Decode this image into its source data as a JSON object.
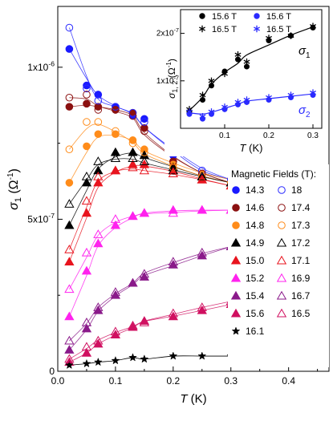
{
  "chart_data": [
    {
      "type": "scatter",
      "xlabel_var": "T",
      "xlabel_unit": "(K)",
      "ylabel_var": "σ",
      "ylabel_sub": "1",
      "ylabel_unit": "(Ω",
      "ylabel_unit_sup": "-1",
      "ylabel_unit_close": ")",
      "xlim": [
        0,
        0.47
      ],
      "ylim": [
        0,
        1.2e-06
      ],
      "x_ticks": [
        0.0,
        0.1,
        0.2,
        0.3,
        0.4
      ],
      "x_tick_labels": [
        "0.0",
        "0.1",
        "0.2",
        "0.3",
        "0.4"
      ],
      "y_ticks": [
        0,
        5e-07,
        1e-06
      ],
      "y_tick_labels": [
        "0",
        "5x10",
        "1x10"
      ],
      "y_tick_label_exps": [
        "",
        "-7",
        "-6"
      ],
      "legend_title": "Magnetic Fields (T):",
      "legend_placement": "right",
      "x": [
        0.02,
        0.05,
        0.07,
        0.1,
        0.13,
        0.15,
        0.2,
        0.25,
        0.3
      ],
      "series": [
        {
          "name": "14.3",
          "marker": "circle",
          "filled": true,
          "color": "#1a1aff",
          "values": [
            1.06e-06,
            9.4e-07,
            9.1e-07,
            8.7e-07,
            8.4e-07,
            8.3e-07,
            7.1e-07,
            6.5e-07,
            6.3e-07
          ]
        },
        {
          "name": "14.6",
          "marker": "circle",
          "filled": true,
          "color": "#8b1010",
          "values": [
            8.7e-07,
            8.8e-07,
            8.7e-07,
            8.6e-07,
            8.5e-07,
            8e-07,
            6.9e-07,
            6.5e-07,
            6.2e-07
          ]
        },
        {
          "name": "14.8",
          "marker": "circle",
          "filled": true,
          "color": "#ff8c1a",
          "values": [
            6.2e-07,
            7.4e-07,
            7.8e-07,
            7.8e-07,
            7.6e-07,
            7.3e-07,
            6.8e-07,
            6.5e-07,
            6.3e-07
          ]
        },
        {
          "name": "14.9",
          "marker": "triangle",
          "filled": true,
          "color": "#000000",
          "values": [
            4.8e-07,
            6.2e-07,
            6.6e-07,
            7.2e-07,
            7.2e-07,
            7.1e-07,
            6.7e-07,
            6.4e-07,
            6.2e-07
          ]
        },
        {
          "name": "15.0",
          "marker": "triangle",
          "filled": true,
          "color": "#e8141e",
          "values": [
            3.6e-07,
            5.2e-07,
            6.2e-07,
            6.6e-07,
            6.8e-07,
            6.8e-07,
            6.6e-07,
            6.3e-07,
            6.1e-07
          ]
        },
        {
          "name": "15.2",
          "marker": "triangle",
          "filled": true,
          "color": "#ff22ee",
          "values": [
            1.8e-07,
            3.3e-07,
            4.2e-07,
            4.8e-07,
            5.1e-07,
            5.2e-07,
            5.3e-07,
            5.3e-07,
            5.3e-07
          ]
        },
        {
          "name": "15.4",
          "marker": "triangle",
          "filled": true,
          "color": "#8a1a8a",
          "values": [
            7e-08,
            1.4e-07,
            2e-07,
            2.5e-07,
            2.9e-07,
            3.1e-07,
            3.5e-07,
            3.8e-07,
            4.1e-07
          ]
        },
        {
          "name": "15.6",
          "marker": "triangle",
          "filled": true,
          "color": "#d01060",
          "values": [
            3e-08,
            6e-08,
            9e-08,
            1.2e-07,
            1.45e-07,
            1.65e-07,
            1.8e-07,
            2e-07,
            2.2e-07
          ]
        },
        {
          "name": "16.1",
          "marker": "star",
          "filled": true,
          "color": "#000000",
          "values": [
            2e-08,
            2.5e-08,
            3e-08,
            3.5e-08,
            4.5e-08,
            4e-08,
            5e-08,
            5e-08,
            5e-08
          ]
        },
        {
          "name": "18",
          "marker": "circle",
          "filled": false,
          "color": "#2a2aff",
          "values": [
            1.13e-06,
            9.3e-07,
            8.9e-07,
            8.7e-07,
            8.5e-07,
            8.2e-07,
            7.2e-07,
            6.6e-07,
            6.3e-07
          ]
        },
        {
          "name": "17.4",
          "marker": "circle",
          "filled": false,
          "color": "#8b1010",
          "values": [
            9e-07,
            9.1e-07,
            8.6e-07,
            8.6e-07,
            8.4e-07,
            7.9e-07,
            6.9e-07,
            6.5e-07,
            6.2e-07
          ]
        },
        {
          "name": "17.3",
          "marker": "circle",
          "filled": false,
          "color": "#ff8c1a",
          "values": [
            7.3e-07,
            8.2e-07,
            8.2e-07,
            7.9e-07,
            7.5e-07,
            7.2e-07,
            6.7e-07,
            6.4e-07,
            6.2e-07
          ]
        },
        {
          "name": "17.2",
          "marker": "triangle",
          "filled": false,
          "color": "#000000",
          "values": [
            5.5e-07,
            6.4e-07,
            6.9e-07,
            7e-07,
            7e-07,
            6.9e-07,
            6.6e-07,
            6.4e-07,
            6.2e-07
          ]
        },
        {
          "name": "17.1",
          "marker": "triangle",
          "filled": false,
          "color": "#e8141e",
          "values": [
            4e-07,
            5.6e-07,
            6.4e-07,
            6.6e-07,
            6.7e-07,
            6.6e-07,
            6.5e-07,
            6.3e-07,
            6.1e-07
          ]
        },
        {
          "name": "16.9",
          "marker": "triangle",
          "filled": false,
          "color": "#ff22ee",
          "values": [
            2.7e-07,
            3.9e-07,
            4.5e-07,
            5e-07,
            5.1e-07,
            5.2e-07,
            5.2e-07,
            5.3e-07,
            5.3e-07
          ]
        },
        {
          "name": "16.7",
          "marker": "triangle",
          "filled": false,
          "color": "#8a1a8a",
          "values": [
            1e-07,
            1.6e-07,
            2.1e-07,
            2.6e-07,
            2.9e-07,
            3.2e-07,
            3.6e-07,
            3.9e-07,
            4.1e-07
          ]
        },
        {
          "name": "16.5",
          "marker": "triangle",
          "filled": false,
          "color": "#d01060",
          "values": [
            4e-08,
            8e-08,
            1e-07,
            1.3e-07,
            1.5e-07,
            1.6e-07,
            1.9e-07,
            2.1e-07,
            2.3e-07
          ]
        }
      ]
    },
    {
      "type": "scatter",
      "inset": true,
      "xlabel_var": "T",
      "xlabel_unit": "(K)",
      "ylabel_var": "σ",
      "ylabel_sub": "1, 2",
      "ylabel_unit": "(Ω",
      "ylabel_unit_sup": "-1",
      "ylabel_unit_close": ")",
      "xlim": [
        0,
        0.32
      ],
      "ylim": [
        0,
        2.5e-07
      ],
      "x_ticks": [
        0.1,
        0.2,
        0.3
      ],
      "x_tick_labels": [
        "0.1",
        "0.2",
        "0.3"
      ],
      "y_ticks": [
        1e-07,
        2e-07
      ],
      "y_tick_labels": [
        "1x10",
        "2x10"
      ],
      "y_tick_label_exps": [
        "-7",
        "-7"
      ],
      "legend_placement": "top",
      "annotations": [
        {
          "var": "σ",
          "sub": "1",
          "color": "#000000"
        },
        {
          "var": "σ",
          "sub": "2",
          "color": "#2a2aff"
        }
      ],
      "series": [
        {
          "name": "15.6 T",
          "marker": "circle",
          "filled": true,
          "color": "#000000",
          "x": [
            0.02,
            0.05,
            0.07,
            0.1,
            0.13,
            0.15,
            0.2,
            0.25,
            0.3
          ],
          "values": [
            3.5e-08,
            6e-08,
            9e-08,
            1.2e-07,
            1.45e-07,
            1.3e-07,
            1.85e-07,
            1.95e-07,
            2.12e-07
          ]
        },
        {
          "name": "16.5 T",
          "marker": "asterisk",
          "filled": false,
          "color": "#000000",
          "x": [
            0.02,
            0.05,
            0.07,
            0.1,
            0.13,
            0.15,
            0.2,
            0.25,
            0.3
          ],
          "values": [
            4e-08,
            7e-08,
            1e-07,
            1.15e-07,
            1.55e-07,
            1.4e-07,
            1.9e-07,
            1.95e-07,
            2.15e-07
          ]
        },
        {
          "name": "15.6 T",
          "marker": "circle",
          "filled": true,
          "color": "#2a2aff",
          "x": [
            0.02,
            0.05,
            0.07,
            0.1,
            0.13,
            0.15,
            0.2,
            0.25,
            0.3
          ],
          "values": [
            3e-08,
            2e-08,
            3e-08,
            4e-08,
            5e-08,
            5.5e-08,
            6e-08,
            6.5e-08,
            7e-08
          ]
        },
        {
          "name": "16.5 T",
          "marker": "asterisk",
          "filled": false,
          "color": "#2a2aff",
          "x": [
            0.02,
            0.05,
            0.07,
            0.1,
            0.13,
            0.15,
            0.2,
            0.25,
            0.3
          ],
          "values": [
            3.5e-08,
            2.5e-08,
            3.5e-08,
            4.5e-08,
            5.5e-08,
            6e-08,
            6.5e-08,
            7e-08,
            7.5e-08
          ]
        }
      ]
    }
  ]
}
